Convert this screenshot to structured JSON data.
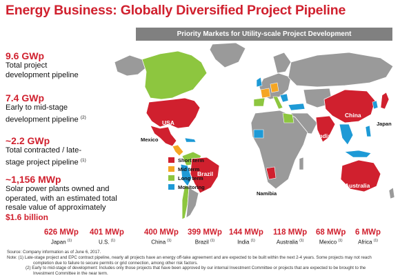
{
  "title": "Energy Business: Globally Diversified Project Pipeline",
  "map_header": "Priority Markets for Utility-scale Project Development",
  "kpis": [
    {
      "value": "9.6 GWp",
      "desc": "Total project development pipeline",
      "note": ""
    },
    {
      "value": "7.4 GWp",
      "desc": "Early to mid-stage development pipeline",
      "note": "(2)"
    },
    {
      "value": "~2.2 GWp",
      "desc": "Total contracted / late-stage project pipeline",
      "note": "(1)"
    },
    {
      "value": "~1,156 MWp",
      "desc": "Solar power plants owned and operated, with an estimated total resale value of approximately",
      "highlight": "$1.6 billion"
    }
  ],
  "legend": [
    {
      "label": "Short term",
      "color": "#d0202e"
    },
    {
      "label": "Mid term",
      "color": "#f5a623"
    },
    {
      "label": "Long term",
      "color": "#8dc63f"
    },
    {
      "label": "Monitoring",
      "color": "#1e9ad6"
    }
  ],
  "map_labels": {
    "usa": "USA",
    "mexico": "Mexico",
    "brazil": "Brazil",
    "namibia": "Namibia",
    "china": "China",
    "india": "India",
    "japan": "Japan",
    "australia": "Australia"
  },
  "stats": [
    {
      "value": "626 MWp",
      "country": "Japan",
      "note": "(1)"
    },
    {
      "value": "401 MWp",
      "country": "U.S.",
      "note": "(1)"
    },
    {
      "value": "400 MWp",
      "country": "China",
      "note": "(1)"
    },
    {
      "value": "399 MWp",
      "country": "Brazil",
      "note": "(1)"
    },
    {
      "value": "144 MWp",
      "country": "India",
      "note": "(1)"
    },
    {
      "value": "118 MWp",
      "country": "Australia",
      "note": "(1)"
    },
    {
      "value": "68 MWp",
      "country": "Mexico",
      "note": "(1)"
    },
    {
      "value": "6 MWp",
      "country": "Africa",
      "note": "(1)"
    }
  ],
  "notes": {
    "source": "Source:  Company information as of  June 6, 2017.",
    "note1": "Note:  (1) Late-stage project and EPC contract pipeline, nearly all projects have an energy off-take agreement and are expected to be built within the next 2-4 years. Some projects may not reach",
    "note1b": "completion due to failure to secure permits or grid connection, among other risk factors.",
    "note2": "(2)  Early to mid-stage of development: Includes  only  those projects that have been approved by our internal Investment Committee or projects that are expected to be brought to the",
    "note2b": "Investment Committee in the near term."
  }
}
